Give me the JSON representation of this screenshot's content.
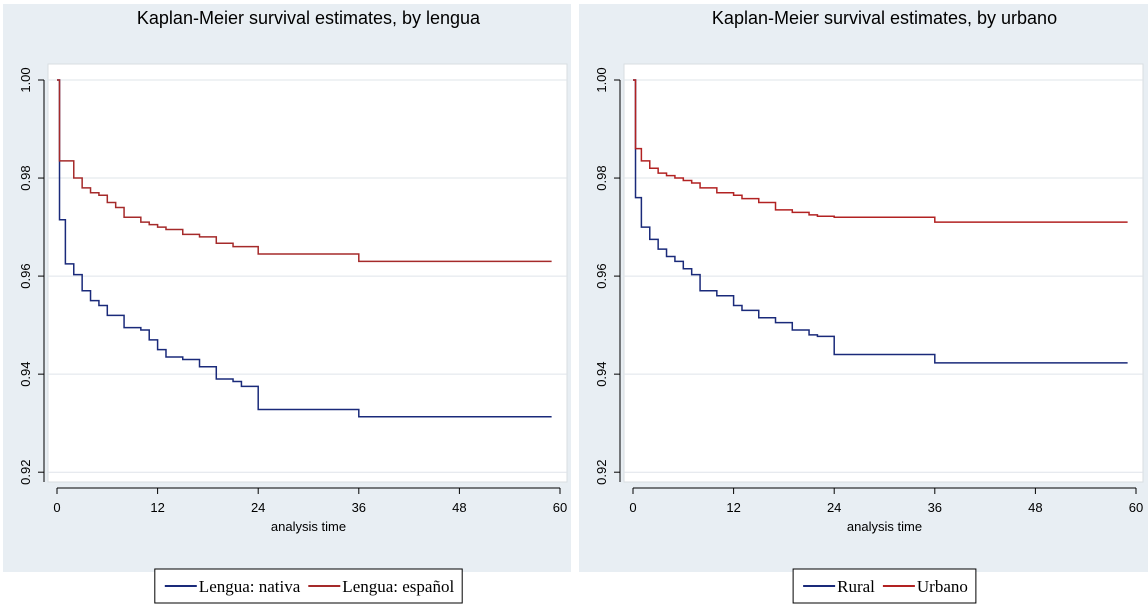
{
  "chart_data": [
    {
      "type": "step",
      "title": "Kaplan-Meier survival estimates, by lengua",
      "xlabel": "analysis time",
      "x": [
        0,
        0.3,
        1,
        2,
        3,
        4,
        5,
        6,
        7,
        8,
        10,
        11,
        12,
        13,
        15,
        17,
        19,
        21,
        22,
        24,
        36,
        59
      ],
      "series": [
        {
          "name": "Lengua: nativa",
          "color": "#1a2a7a",
          "values": [
            1.0,
            0.9715,
            0.9625,
            0.9603,
            0.957,
            0.955,
            0.954,
            0.952,
            0.952,
            0.9495,
            0.949,
            0.947,
            0.945,
            0.9435,
            0.943,
            0.9415,
            0.939,
            0.9385,
            0.9375,
            0.9328,
            0.9313,
            0.9313
          ]
        },
        {
          "name": "Lengua: español",
          "color": "#a52a2a",
          "values": [
            1.0,
            0.9835,
            0.9835,
            0.98,
            0.978,
            0.977,
            0.9765,
            0.975,
            0.974,
            0.972,
            0.971,
            0.9705,
            0.97,
            0.9695,
            0.9685,
            0.968,
            0.9667,
            0.966,
            0.966,
            0.9645,
            0.963,
            0.963
          ]
        }
      ],
      "xlim": [
        0,
        60
      ],
      "xticks": [
        0,
        12,
        24,
        36,
        48,
        60
      ],
      "ylim": [
        0.918,
        1.0
      ],
      "yticks": [
        {
          "value": 1,
          "label": "1.00"
        },
        0.98,
        0.96,
        0.94,
        0.92
      ],
      "grid": true,
      "legend": "bottom"
    },
    {
      "type": "step",
      "title": "Kaplan-Meier survival estimates, by urbano",
      "xlabel": "analysis time",
      "x": [
        0,
        0.3,
        1,
        2,
        3,
        4,
        5,
        6,
        7,
        8,
        10,
        12,
        13,
        15,
        17,
        19,
        21,
        22,
        24,
        36,
        59
      ],
      "series": [
        {
          "name": "Rural",
          "color": "#1a2a7a",
          "values": [
            1.0,
            0.976,
            0.97,
            0.9675,
            0.9655,
            0.964,
            0.963,
            0.9615,
            0.9603,
            0.957,
            0.956,
            0.954,
            0.953,
            0.9515,
            0.9505,
            0.949,
            0.948,
            0.9477,
            0.944,
            0.9423,
            0.9423
          ]
        },
        {
          "name": "Urbano",
          "color": "#b22222",
          "values": [
            1.0,
            0.986,
            0.9835,
            0.982,
            0.981,
            0.9805,
            0.98,
            0.9795,
            0.979,
            0.978,
            0.977,
            0.9765,
            0.9758,
            0.975,
            0.9735,
            0.973,
            0.9725,
            0.9722,
            0.972,
            0.971,
            0.971
          ]
        }
      ],
      "xlim": [
        0,
        60
      ],
      "xticks": [
        0,
        12,
        24,
        36,
        48,
        60
      ],
      "ylim": [
        0.918,
        1.0
      ],
      "yticks": [
        {
          "value": 1,
          "label": "1.00"
        },
        0.98,
        0.96,
        0.94,
        0.92
      ],
      "grid": true,
      "legend": "bottom"
    }
  ]
}
